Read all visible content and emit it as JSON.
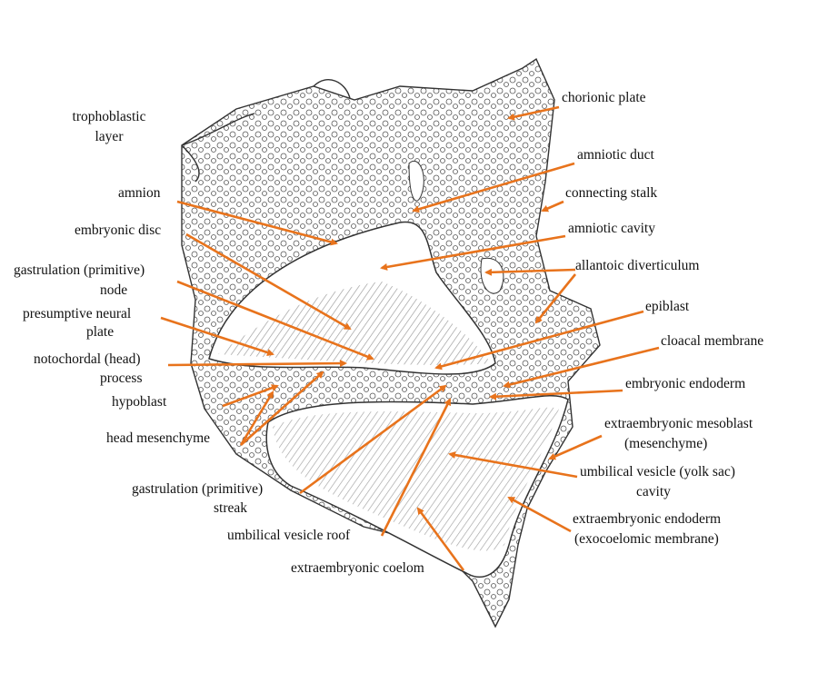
{
  "labels": [
    {
      "lines": [
        "trophoblastic",
        "layer"
      ]
    },
    {
      "lines": [
        "amnion"
      ]
    },
    {
      "lines": [
        "embryonic disc"
      ]
    },
    {
      "lines": [
        "gastrulation (primitive)",
        "node"
      ]
    },
    {
      "lines": [
        "presumptive neural",
        "plate"
      ]
    },
    {
      "lines": [
        "notochordal (head)",
        "process"
      ]
    },
    {
      "lines": [
        "hypoblast"
      ]
    },
    {
      "lines": [
        "head mesenchyme"
      ]
    },
    {
      "lines": [
        "gastrulation (primitive)",
        "streak"
      ]
    },
    {
      "lines": [
        "umbilical vesicle roof"
      ]
    },
    {
      "lines": [
        "extraembryonic coelom"
      ]
    },
    {
      "lines": [
        "chorionic plate"
      ]
    },
    {
      "lines": [
        "amniotic duct"
      ]
    },
    {
      "lines": [
        "connecting stalk"
      ]
    },
    {
      "lines": [
        "amniotic cavity"
      ]
    },
    {
      "lines": [
        "allantoic diverticulum"
      ]
    },
    {
      "lines": [
        "epiblast"
      ]
    },
    {
      "lines": [
        "cloacal membrane"
      ]
    },
    {
      "lines": [
        "embryonic endoderm"
      ]
    },
    {
      "lines": [
        "extraembryonic mesoblast",
        "(mesenchyme)"
      ]
    },
    {
      "lines": [
        "umbilical vesicle (yolk sac)",
        "cavity"
      ]
    },
    {
      "lines": [
        "extraembryonic endoderm",
        "(exocoelomic membrane)"
      ]
    }
  ]
}
